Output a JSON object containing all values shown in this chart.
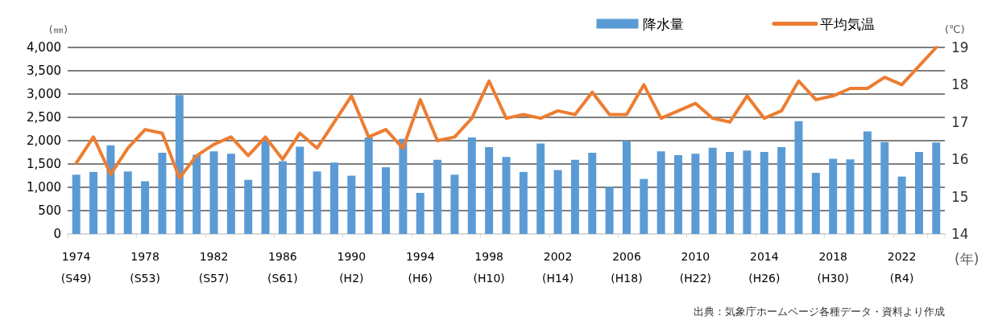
{
  "chart_data": {
    "type": "bar",
    "categories": [
      "1974\n(S49)",
      null,
      null,
      null,
      "1978\n(S53)",
      null,
      null,
      null,
      "1982\n(S57)",
      null,
      null,
      null,
      "1986\n(S61)",
      null,
      null,
      null,
      "1990\n(H2)",
      null,
      null,
      null,
      "1994\n(H6)",
      null,
      null,
      null,
      "1998\n(H10)",
      null,
      null,
      null,
      "2002\n(H14)",
      null,
      null,
      null,
      "2006\n(H18)",
      null,
      null,
      null,
      "2010\n(H22)",
      null,
      null,
      null,
      "2014\n(H26)",
      null,
      null,
      null,
      "2018\n(H30)",
      null,
      null,
      null,
      "2022\n(R4)",
      null,
      null
    ],
    "series": [
      {
        "name": "降水量",
        "color": "#5b9bd5",
        "values": [
          1270,
          1330,
          1900,
          1340,
          1130,
          1740,
          2980,
          1700,
          1770,
          1720,
          1160,
          1990,
          1560,
          1870,
          1340,
          1530,
          1250,
          2070,
          1430,
          2040,
          880,
          1590,
          1270,
          2070,
          1860,
          1650,
          1330,
          1940,
          1370,
          1590,
          1740,
          1010,
          2000,
          1180,
          1770,
          1690,
          1720,
          1850,
          1760,
          1790,
          1760,
          1860,
          2420,
          1310,
          1610,
          1600,
          2200,
          1970,
          1230,
          1760,
          1960
        ]
      },
      {
        "name": "平均気温",
        "type": "line",
        "axis": "y2",
        "color": "#ed7d31",
        "values": [
          15.9,
          16.6,
          15.6,
          16.3,
          16.8,
          16.7,
          15.5,
          16.1,
          16.4,
          16.6,
          16.1,
          16.6,
          16.0,
          16.7,
          16.3,
          17.0,
          17.7,
          16.6,
          16.8,
          16.3,
          17.6,
          16.5,
          16.6,
          17.1,
          18.1,
          17.1,
          17.2,
          17.1,
          17.3,
          17.2,
          17.8,
          17.2,
          17.2,
          18.0,
          17.1,
          17.3,
          17.5,
          17.1,
          17.0,
          17.7,
          17.1,
          17.3,
          18.1,
          17.6,
          17.7,
          17.9,
          17.9,
          18.2,
          18.0,
          18.5,
          19.0
        ]
      }
    ],
    "ylabel": "(㎜)",
    "y2label": "(℃)",
    "xlabel": "(年)",
    "ylim": [
      0,
      4000
    ],
    "yticks": [
      0,
      {
        "value": 500,
        "label": "500"
      },
      {
        "value": 1000,
        "label": "1,000"
      },
      {
        "value": 1500,
        "label": "1,500"
      },
      {
        "value": 2000,
        "label": "2,000"
      },
      {
        "value": 2500,
        "label": "2,500"
      },
      {
        "value": 3000,
        "label": "3,000"
      },
      {
        "value": 3500,
        "label": "3,500"
      },
      {
        "value": 4000,
        "label": "4,000"
      }
    ],
    "y2lim": [
      14,
      19
    ],
    "y2ticks": [
      14,
      15,
      16,
      17,
      18,
      19
    ],
    "grid": "y",
    "legend": "top right",
    "marker": "none",
    "annotations": [
      "出典：気象庁ホームページ各種データ・資料より作成"
    ]
  }
}
